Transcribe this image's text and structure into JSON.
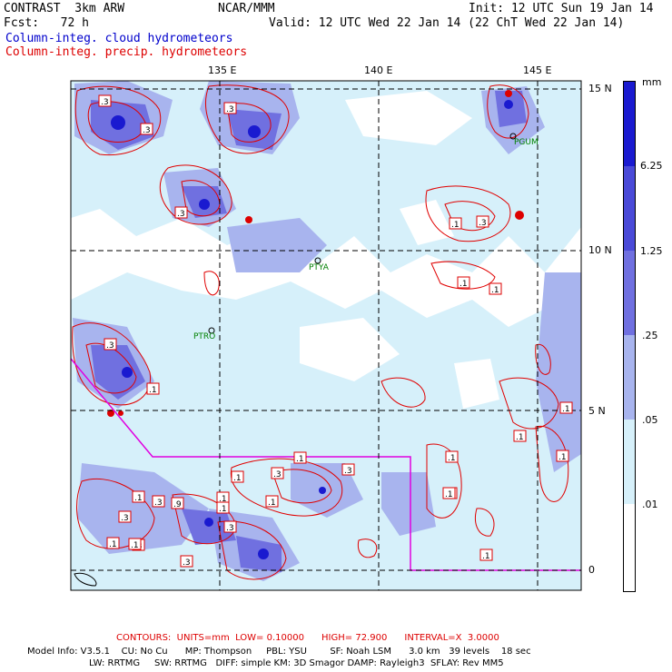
{
  "header": {
    "title": "CONTRAST  3km ARW",
    "center": "NCAR/MMM",
    "init": "Init: 12 UTC Sun 19 Jan 14",
    "fcst": "Fcst:   72 h",
    "valid": "Valid: 12 UTC Wed 22 Jan 14 (22 ChT Wed 22 Jan 14)",
    "legend_cloud": "Column-integ. cloud hydrometeors",
    "legend_precip": "Column-integ. precip. hydrometeors"
  },
  "axes": {
    "lon_labels": [
      "135 E",
      "140 E",
      "145 E"
    ],
    "lat_labels": [
      "15 N",
      "10 N",
      "5 N",
      "0"
    ]
  },
  "stations": [
    "PGUM",
    "PTYA",
    "PTRO"
  ],
  "colorbar": {
    "unit": "mm",
    "labels": [
      "6.25",
      "1.25",
      ".25",
      ".05",
      ".01"
    ],
    "colors": [
      "#1a1ad0",
      "#4a4ad8",
      "#7070e0",
      "#a8b4ee",
      "#d6f0fa",
      "#ffffff"
    ]
  },
  "contour_labels": [
    ".3",
    ".3",
    ".3",
    ".3",
    ".1",
    ".3",
    ".1",
    ".3",
    ".1",
    ".1",
    ".1",
    ".1",
    ".1",
    ".3",
    ".1",
    ".3",
    ".1",
    ".1",
    ".1",
    ".1",
    ".3",
    ".1",
    ".1",
    ".1",
    ".3",
    ".9",
    ".1",
    ".3",
    ".1",
    ".3",
    ".3",
    ".1",
    ".1",
    ".1",
    ".1",
    ".1"
  ],
  "footer": {
    "contours": "CONTOURS:  UNITS=mm  LOW= 0.10000      HIGH= 72.900      INTERVAL=X  3.0000",
    "model1": "Model Info: V3.5.1    CU: No Cu      MP: Thompson     PBL: YSU        SF: Noah LSM      3.0 km   39 levels    18 sec",
    "model2": "LW: RRTMG     SW: RRTMG   DIFF: simple KM: 3D Smagor DAMP: Rayleigh3  SFLAY: Rev MM5"
  }
}
